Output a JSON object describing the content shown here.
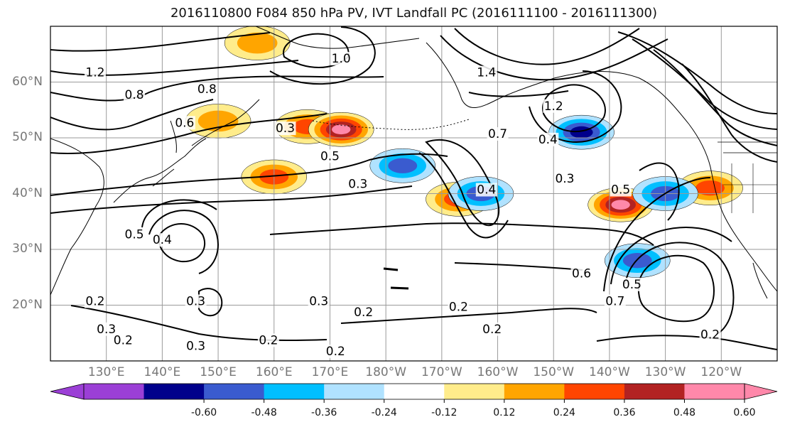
{
  "title": "2016110800 F084 850 hPa PV, IVT Landfall PC (2016111100 - 2016111300)",
  "map": {
    "lat_ticks": [
      "60°N",
      "50°N",
      "40°N",
      "30°N",
      "20°N"
    ],
    "lon_ticks": [
      "130°E",
      "140°E",
      "150°E",
      "160°E",
      "170°E",
      "180°W",
      "170°W",
      "160°W",
      "150°W",
      "140°W",
      "130°W",
      "120°W"
    ],
    "contour_labels": [
      {
        "text": "1.0",
        "lon": 172,
        "lat": 63.5
      },
      {
        "text": "1.2",
        "lon": 128,
        "lat": 61
      },
      {
        "text": "0.8",
        "lon": 135,
        "lat": 57
      },
      {
        "text": "0.6",
        "lon": 144,
        "lat": 52
      },
      {
        "text": "0.8",
        "lon": 148,
        "lat": 58
      },
      {
        "text": "1.4",
        "lon": -162,
        "lat": 61
      },
      {
        "text": "1.2",
        "lon": -150,
        "lat": 55
      },
      {
        "text": "0.7",
        "lon": -160,
        "lat": 50
      },
      {
        "text": "0.4",
        "lon": -151,
        "lat": 49
      },
      {
        "text": "0.3",
        "lon": 162,
        "lat": 51
      },
      {
        "text": "0.5",
        "lon": 170,
        "lat": 46
      },
      {
        "text": "0.3",
        "lon": 175,
        "lat": 41
      },
      {
        "text": "0.4",
        "lon": -162,
        "lat": 40
      },
      {
        "text": "0.3",
        "lon": -148,
        "lat": 42
      },
      {
        "text": "0.5",
        "lon": -138,
        "lat": 40
      },
      {
        "text": "0.5",
        "lon": 135,
        "lat": 32
      },
      {
        "text": "0.4",
        "lon": 140,
        "lat": 31
      },
      {
        "text": "0.3",
        "lon": 146,
        "lat": 20
      },
      {
        "text": "0.3",
        "lon": 168,
        "lat": 20
      },
      {
        "text": "0.2",
        "lon": 176,
        "lat": 18
      },
      {
        "text": "0.2",
        "lon": -167,
        "lat": 19
      },
      {
        "text": "0.2",
        "lon": -161,
        "lat": 15
      },
      {
        "text": "0.2",
        "lon": 159,
        "lat": 13
      },
      {
        "text": "0.2",
        "lon": 171,
        "lat": 11
      },
      {
        "text": "0.3",
        "lon": 146,
        "lat": 12
      },
      {
        "text": "0.2",
        "lon": 128,
        "lat": 20
      },
      {
        "text": "0.3",
        "lon": 130,
        "lat": 15
      },
      {
        "text": "0.2",
        "lon": 133,
        "lat": 13
      },
      {
        "text": "0.6",
        "lon": -145,
        "lat": 25
      },
      {
        "text": "0.7",
        "lon": -139,
        "lat": 20
      },
      {
        "text": "0.5",
        "lon": -136,
        "lat": 23
      },
      {
        "text": "0.2",
        "lon": -122,
        "lat": 14
      }
    ]
  },
  "colorbar": {
    "ticks": [
      "-0.60",
      "-0.48",
      "-0.36",
      "-0.24",
      "-0.12",
      "0.12",
      "0.24",
      "0.36",
      "0.48",
      "0.60"
    ],
    "colors": [
      "#9b3fd6",
      "#00008b",
      "#3a5bcf",
      "#00bfff",
      "#b0e2ff",
      "#ffffff",
      "#ffec8b",
      "#ffa500",
      "#ff4500",
      "#b22222",
      "#ff88aa",
      "#ff88aa"
    ],
    "extend_low": "#9b3fd6",
    "extend_high": "#ff88aa"
  },
  "chart_data": {
    "type": "heatmap",
    "title": "2016110800 F084 850 hPa PV, IVT Landfall PC (2016111100 - 2016111300)",
    "x_range": [
      120,
      250
    ],
    "y_range": [
      10,
      70
    ],
    "contour_levels": [
      0.2,
      0.3,
      0.4,
      0.5,
      0.6,
      0.7,
      0.8,
      1.0,
      1.2,
      1.4
    ],
    "shading_levels": [
      -0.6,
      -0.48,
      -0.36,
      -0.24,
      -0.12,
      0.12,
      0.24,
      0.36,
      0.48,
      0.6
    ],
    "anomalies": [
      {
        "lon": 166,
        "lat": 52,
        "value": 0.45
      },
      {
        "lon": 172,
        "lat": 51.5,
        "value": 0.62
      },
      {
        "lon": 160,
        "lat": 43,
        "value": 0.38
      },
      {
        "lon": -167,
        "lat": 39,
        "value": 0.4
      },
      {
        "lon": -138,
        "lat": 38,
        "value": 0.62
      },
      {
        "lon": -145,
        "lat": 51,
        "value": -0.55
      },
      {
        "lon": -163,
        "lat": 40,
        "value": -0.45
      },
      {
        "lon": -177,
        "lat": 45,
        "value": -0.42
      },
      {
        "lon": -135,
        "lat": 28,
        "value": -0.45
      },
      {
        "lon": 150,
        "lat": 53,
        "value": 0.35
      },
      {
        "lon": -122,
        "lat": 41,
        "value": 0.45
      },
      {
        "lon": 157,
        "lat": 67,
        "value": 0.3
      },
      {
        "lon": -130,
        "lat": 40,
        "value": -0.4
      }
    ]
  }
}
